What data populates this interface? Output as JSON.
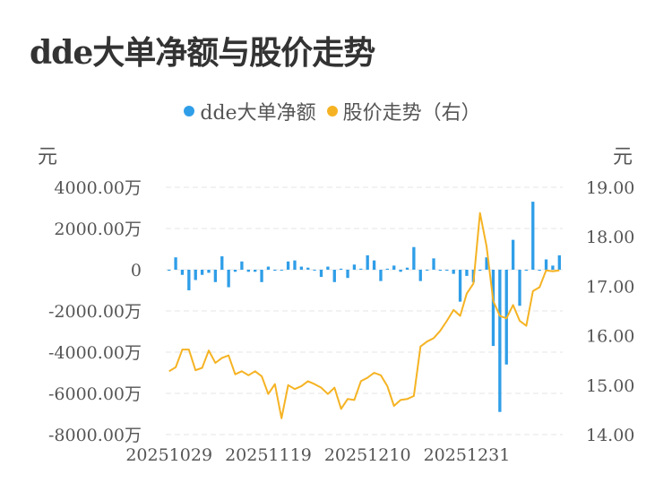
{
  "title": "dde大单净额与股价走势",
  "legend": {
    "items": [
      {
        "label": "dde大单净额",
        "color": "#2f9ee8"
      },
      {
        "label": "股价走势（右）",
        "color": "#f5b323"
      }
    ]
  },
  "units": {
    "left": "元",
    "right": "元"
  },
  "colors": {
    "bar": "#2f9ee8",
    "line": "#f5b323",
    "grid": "#e6e6e6"
  },
  "chart_data": {
    "type": "bar+line",
    "title": "dde大单净额与股价走势",
    "ylabel_left": "元",
    "ylabel_right": "元",
    "ylim_left": [
      -8000,
      4000
    ],
    "ylim_right": [
      14.0,
      19.0
    ],
    "y_ticks_left": [
      {
        "value": 4000,
        "label": "4000.00万"
      },
      {
        "value": 2000,
        "label": "2000.00万"
      },
      {
        "value": 0,
        "label": "0"
      },
      {
        "value": -2000,
        "label": "-2000.00万"
      },
      {
        "value": -4000,
        "label": "-4000.00万"
      },
      {
        "value": -6000,
        "label": "-6000.00万"
      },
      {
        "value": -8000,
        "label": "-8000.00万"
      }
    ],
    "y_ticks_right": [
      {
        "value": 19.0,
        "label": "19.00"
      },
      {
        "value": 18.0,
        "label": "18.00"
      },
      {
        "value": 17.0,
        "label": "17.00"
      },
      {
        "value": 16.0,
        "label": "16.00"
      },
      {
        "value": 15.0,
        "label": "15.00"
      },
      {
        "value": 14.0,
        "label": "14.00"
      }
    ],
    "x_tick_labels": [
      {
        "index": 0,
        "label": "20251029"
      },
      {
        "index": 15,
        "label": "20251119"
      },
      {
        "index": 30,
        "label": "20251210"
      },
      {
        "index": 45,
        "label": "20251231"
      }
    ],
    "grid": true,
    "legend_position": "top-center",
    "series": [
      {
        "name": "dde大单净额",
        "type": "bar",
        "axis": "left",
        "values": [
          -50,
          600,
          -250,
          -1000,
          -500,
          -250,
          -150,
          -600,
          650,
          -850,
          -100,
          400,
          -100,
          -100,
          -600,
          150,
          -50,
          0,
          400,
          450,
          150,
          100,
          0,
          -350,
          150,
          -600,
          50,
          -400,
          250,
          50,
          700,
          450,
          -550,
          50,
          200,
          -100,
          100,
          1100,
          -550,
          0,
          550,
          -50,
          -50,
          -200,
          -1550,
          -300,
          -600,
          -50,
          600,
          -3700,
          -6900,
          -4600,
          1450,
          -1750,
          -50,
          3300,
          -50,
          500,
          200,
          700
        ]
      },
      {
        "name": "股价走势（右）",
        "type": "line",
        "axis": "right",
        "values": [
          15.28,
          15.36,
          15.72,
          15.72,
          15.3,
          15.35,
          15.7,
          15.45,
          15.55,
          15.6,
          15.22,
          15.28,
          15.2,
          15.28,
          15.18,
          14.82,
          15.02,
          14.33,
          15.0,
          14.92,
          14.98,
          15.08,
          15.02,
          14.95,
          14.82,
          14.95,
          14.52,
          14.72,
          14.7,
          15.08,
          15.15,
          15.25,
          15.2,
          14.98,
          14.58,
          14.7,
          14.72,
          14.78,
          15.78,
          15.88,
          15.95,
          16.1,
          16.3,
          16.52,
          16.4,
          16.85,
          17.05,
          18.48,
          17.8,
          16.7,
          16.4,
          16.35,
          16.62,
          16.3,
          16.2,
          16.9,
          16.98,
          17.32,
          17.3,
          17.32
        ]
      }
    ]
  }
}
